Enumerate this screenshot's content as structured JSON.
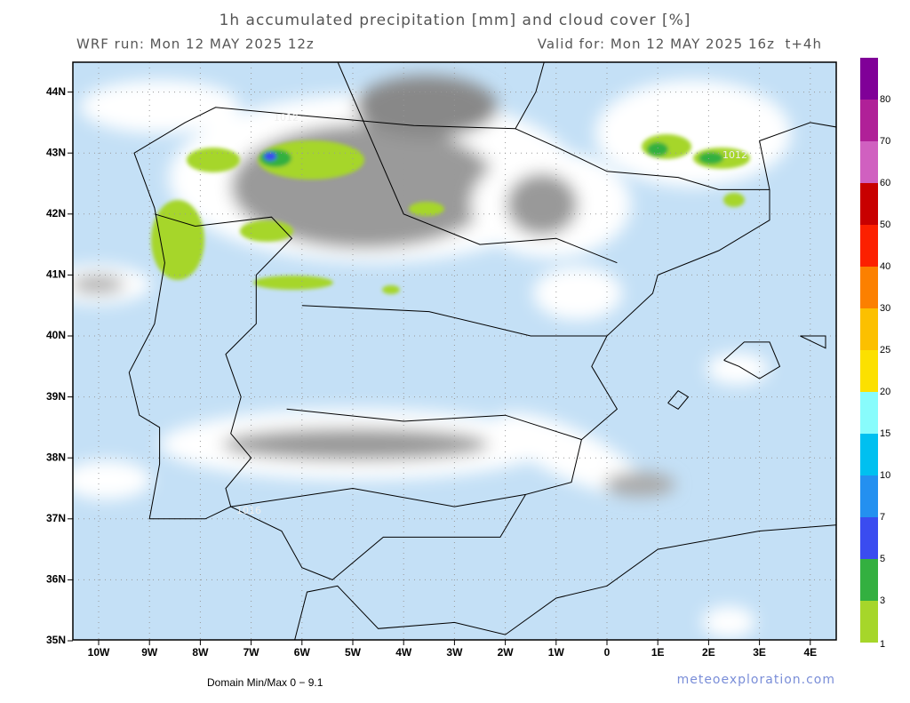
{
  "header": {
    "title": "1h accumulated precipitation [mm] and cloud cover [%]",
    "run": "WRF run: Mon 12 MAY 2025 12z",
    "valid": "Valid for: Mon 12 MAY 2025 16z  t+4h"
  },
  "map": {
    "lat_labels": [
      "44N",
      "43N",
      "42N",
      "41N",
      "40N",
      "39N",
      "38N",
      "37N",
      "36N",
      "35N"
    ],
    "lon_labels": [
      "10W",
      "9W",
      "8W",
      "7W",
      "6W",
      "5W",
      "4W",
      "3W",
      "2W",
      "1W",
      "0",
      "1E",
      "2E",
      "3E",
      "4E"
    ],
    "isobar_labels": [
      "1012",
      "1012",
      "1016"
    ]
  },
  "colorbar": {
    "levels": [
      1,
      3,
      5,
      7,
      10,
      15,
      20,
      25,
      30,
      40,
      50,
      60,
      70,
      80
    ],
    "colors": [
      "#a6d62a",
      "#33b040",
      "#3a4cf0",
      "#2490f0",
      "#00c0f0",
      "#88fcfc",
      "#fce000",
      "#fcc000",
      "#fc8000",
      "#fc2000",
      "#c80000",
      "#d060c0",
      "#b02098",
      "#800098"
    ]
  },
  "footer": {
    "minmax": "Domain Min/Max 0 − 9.1",
    "site": "meteoexploration.com"
  }
}
